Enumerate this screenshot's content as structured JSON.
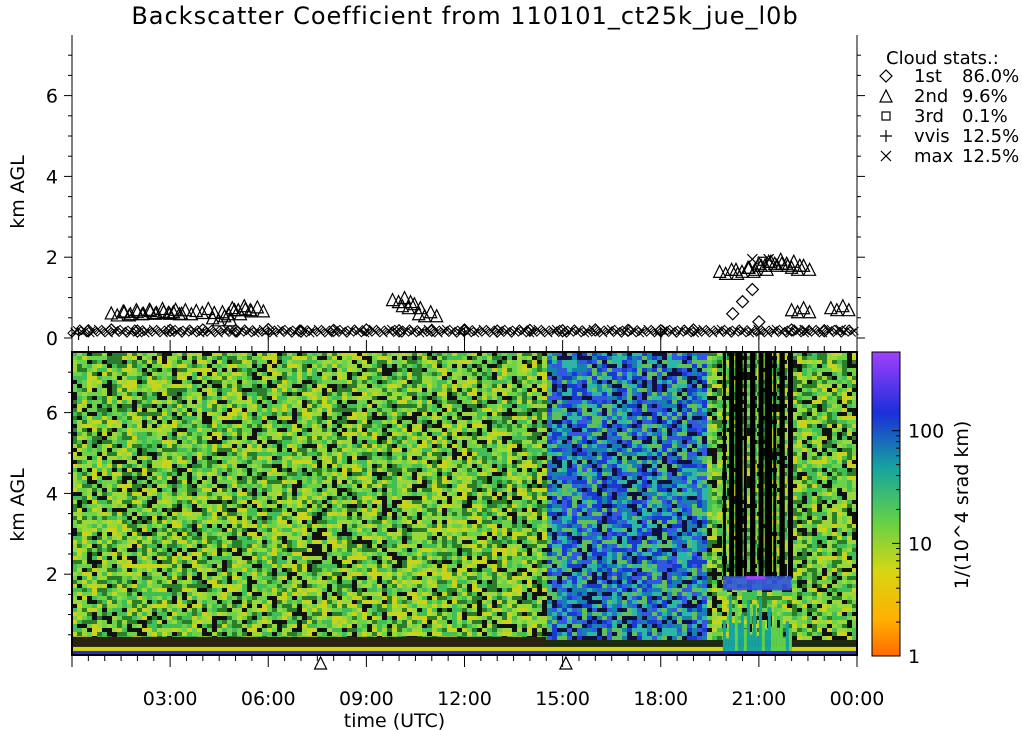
{
  "chart_data": [
    {
      "type": "scatter",
      "panel": "cloud-base",
      "title": "Backscatter Coefficient from 110101_ct25k_jue_l0b",
      "ylabel": "km AGL",
      "ylim": [
        0,
        7.5
      ],
      "yticks": [
        "0",
        "2",
        "4",
        "6"
      ],
      "legend": {
        "title": "Cloud stats.:",
        "placement": "top-right",
        "entries": [
          {
            "symbol": "◇",
            "label": "1st",
            "value": "86.0%"
          },
          {
            "symbol": "△",
            "label": "2nd",
            "value": "9.6%"
          },
          {
            "symbol": "□",
            "label": "3rd",
            "value": "0.1%"
          },
          {
            "symbol": "+",
            "label": "vvis",
            "value": "12.5%"
          },
          {
            "symbol": "×",
            "label": "max",
            "value": "12.5%"
          }
        ]
      },
      "series": [
        {
          "name": "1st",
          "symbol": "diamond",
          "points": [
            [
              0.5,
              0.18
            ],
            [
              1.2,
              0.2
            ],
            [
              2.0,
              0.17
            ],
            [
              3.0,
              0.19
            ],
            [
              4.0,
              0.2
            ],
            [
              5.0,
              0.18
            ],
            [
              6.0,
              0.21
            ],
            [
              7.0,
              0.17
            ],
            [
              8.0,
              0.19
            ],
            [
              9.0,
              0.2
            ],
            [
              10.0,
              0.18
            ],
            [
              11.0,
              0.19
            ],
            [
              12.0,
              0.2
            ],
            [
              13.0,
              0.17
            ],
            [
              14.0,
              0.19
            ],
            [
              15.0,
              0.18
            ],
            [
              16.0,
              0.2
            ],
            [
              17.0,
              0.19
            ],
            [
              18.0,
              0.18
            ],
            [
              19.0,
              0.2
            ],
            [
              20.2,
              0.6
            ],
            [
              20.5,
              0.9
            ],
            [
              20.8,
              1.2
            ],
            [
              21.0,
              0.4
            ],
            [
              22.0,
              0.2
            ],
            [
              23.0,
              0.18
            ]
          ]
        },
        {
          "name": "2nd",
          "symbol": "triangle",
          "points": [
            [
              1.2,
              0.62
            ],
            [
              1.6,
              0.65
            ],
            [
              2.0,
              0.66
            ],
            [
              2.4,
              0.68
            ],
            [
              2.8,
              0.66
            ],
            [
              3.1,
              0.65
            ],
            [
              3.8,
              0.68
            ],
            [
              4.3,
              0.5
            ],
            [
              4.6,
              0.65
            ],
            [
              4.9,
              0.75
            ],
            [
              5.3,
              0.72
            ],
            [
              9.8,
              0.95
            ],
            [
              10.1,
              0.8
            ],
            [
              10.6,
              0.6
            ],
            [
              7.6,
              -0.15
            ],
            [
              15.1,
              -0.15
            ],
            [
              19.8,
              1.65
            ],
            [
              20.3,
              1.7
            ],
            [
              20.7,
              1.75
            ],
            [
              21.0,
              1.85
            ],
            [
              21.3,
              1.9
            ],
            [
              21.7,
              1.85
            ],
            [
              22.0,
              1.75
            ],
            [
              22.0,
              0.7
            ],
            [
              23.2,
              0.75
            ]
          ]
        },
        {
          "name": "3rd",
          "symbol": "square",
          "points": [
            [
              21.1,
              1.9
            ]
          ]
        },
        {
          "name": "vvis",
          "symbol": "plus",
          "points": [
            [
              0.2,
              0.1
            ],
            [
              6.0,
              0.1
            ],
            [
              12.0,
              0.1
            ],
            [
              18.0,
              0.1
            ],
            [
              21.0,
              0.1
            ]
          ]
        },
        {
          "name": "max",
          "symbol": "cross",
          "points": [
            [
              20.8,
              1.95
            ],
            [
              21.3,
              1.95
            ],
            [
              22.4,
              0.2
            ],
            [
              23.5,
              0.2
            ]
          ]
        }
      ]
    },
    {
      "type": "heatmap",
      "panel": "backscatter",
      "xlabel": "time (UTC)",
      "ylabel": "km AGL",
      "xlim": [
        0,
        24
      ],
      "ylim": [
        0,
        7.5
      ],
      "xticks": [
        "03:00",
        "06:00",
        "09:00",
        "12:00",
        "15:00",
        "18:00",
        "21:00",
        "00:00"
      ],
      "yticks": [
        "2",
        "4",
        "6"
      ],
      "colorbar": {
        "label": "1/(10^4 srad km)",
        "scale": "log",
        "ticks": [
          "1",
          "10",
          "100"
        ],
        "range": [
          1,
          500
        ]
      },
      "colors": {
        "low": "#ff6a00",
        "yellow": "#d6d614",
        "green": "#5fd04a",
        "teal": "#16a3a0",
        "blue": "#1b2fd8",
        "high": "#a040ff"
      },
      "regions": [
        {
          "t0": 0,
          "t1": 14.5,
          "h0": 0.45,
          "h1": 7.5,
          "level": "green-noise"
        },
        {
          "t0": 14.5,
          "t1": 19.3,
          "h0": 0.45,
          "h1": 7.5,
          "level": "blue-noise"
        },
        {
          "t0": 19.3,
          "t1": 24,
          "h0": 0.45,
          "h1": 7.5,
          "level": "green-noise"
        },
        {
          "t0": 0,
          "t1": 14.5,
          "h0": 0.15,
          "h1": 0.45,
          "level": "dark-band"
        },
        {
          "t0": 19.9,
          "t1": 22.0,
          "h0": 0.1,
          "h1": 1.6,
          "level": "cloud-green"
        },
        {
          "t0": 19.9,
          "t1": 22.0,
          "h0": 1.6,
          "h1": 2.0,
          "level": "cloud-blue"
        },
        {
          "t0": 0,
          "t1": 24,
          "h0": 0.0,
          "h1": 0.12,
          "level": "surface-blue"
        }
      ]
    }
  ]
}
